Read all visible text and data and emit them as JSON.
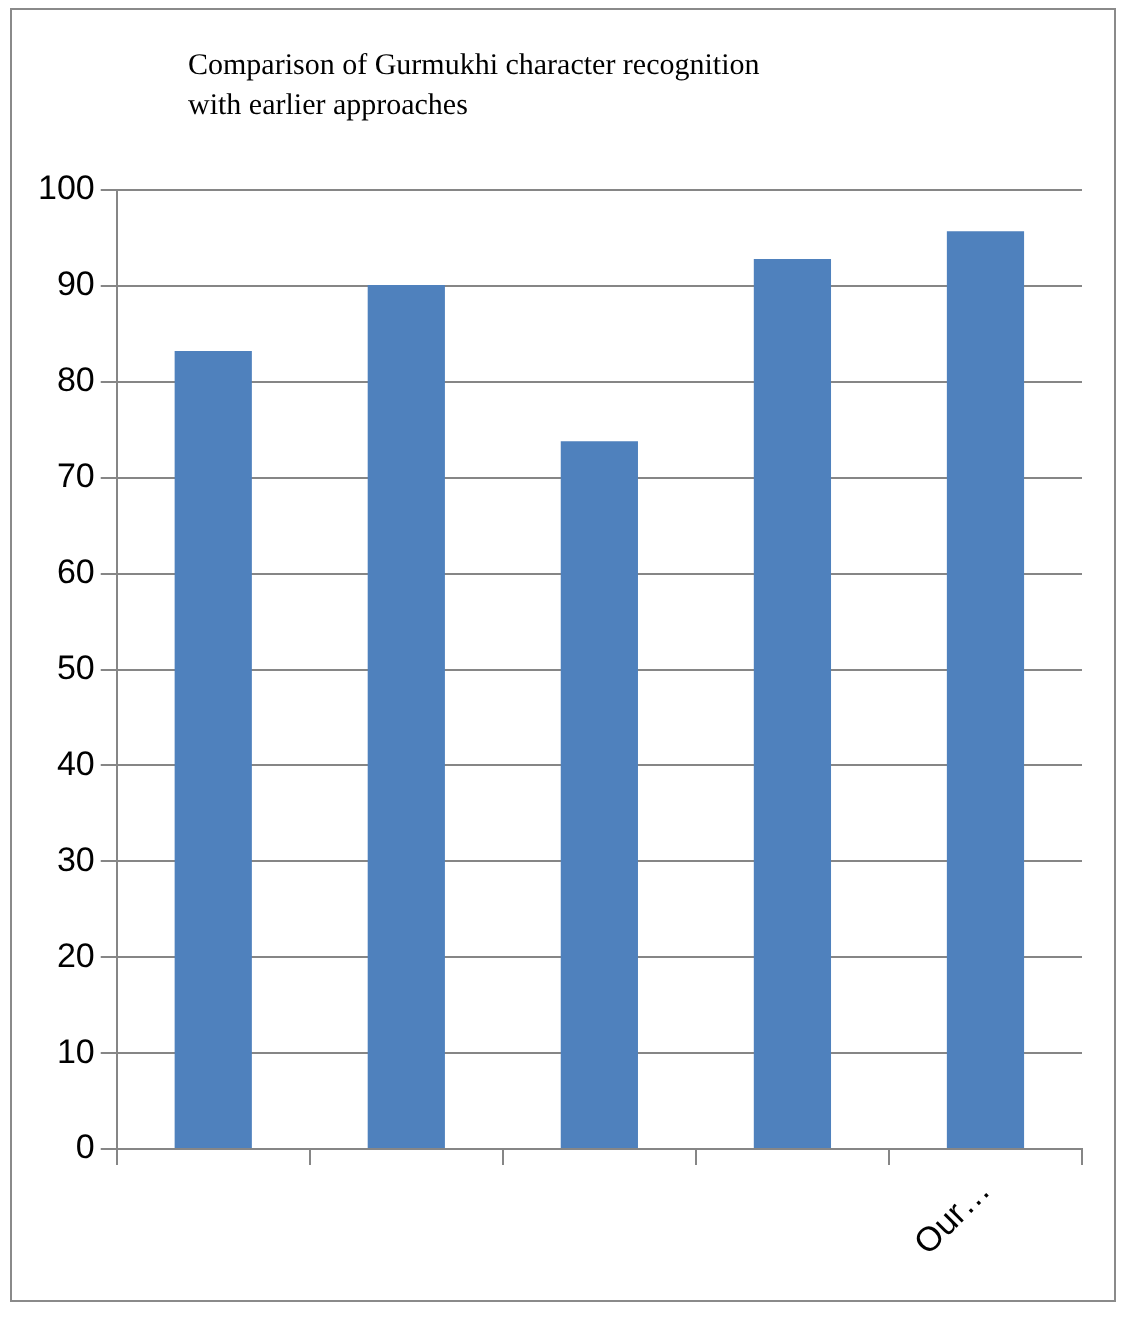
{
  "chart_data": {
    "type": "bar",
    "title": "Comparison of Gurmukhi character recognition with earlier approaches",
    "categories": [
      null,
      null,
      null,
      null,
      "Our…"
    ],
    "values": [
      83.2,
      90.1,
      73.8,
      92.8,
      95.7
    ],
    "color": "#4f81bd",
    "ylim": [
      0,
      100
    ],
    "yticks": [
      0,
      10,
      20,
      30,
      40,
      50,
      60,
      70,
      80,
      90,
      100
    ],
    "grid": "y",
    "legend": false
  }
}
